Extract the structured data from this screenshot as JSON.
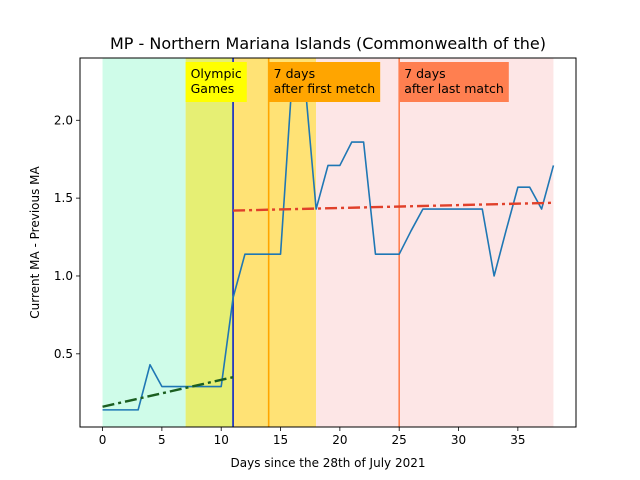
{
  "chart_data": {
    "type": "line",
    "title": "MP - Northern Mariana Islands (Commonwealth of the)",
    "xlabel": "Days since the 28th of July 2021",
    "ylabel": "Current MA - Previous MA",
    "xlim": [
      -1.9,
      39.9
    ],
    "ylim": [
      0.03,
      2.4
    ],
    "xticks": [
      0,
      5,
      10,
      15,
      20,
      25,
      30,
      35
    ],
    "yticks": [
      0.5,
      1.0,
      1.5,
      2.0
    ],
    "xtick_labels": [
      "0",
      "5",
      "10",
      "15",
      "20",
      "25",
      "30",
      "35"
    ],
    "ytick_labels": [
      "0.5",
      "1.0",
      "1.5",
      "2.0"
    ],
    "grid": false,
    "regions": [
      {
        "from": 0,
        "to": 7,
        "color": "#cffce9"
      },
      {
        "from": 7,
        "to": 11,
        "color": "#e6ef74"
      },
      {
        "from": 11,
        "to": 18,
        "color": "#ffe275"
      },
      {
        "from": 18,
        "to": 38,
        "color": "#fde6e6"
      }
    ],
    "vlines": [
      {
        "x": 11,
        "color": "#0b22c9"
      },
      {
        "x": 14,
        "color": "#ffa500"
      },
      {
        "x": 25,
        "color": "#ff7f50"
      }
    ],
    "annotations": [
      {
        "x": 7,
        "lines": [
          "Olympic",
          "Games"
        ],
        "bg": "#ffff00"
      },
      {
        "x": 14,
        "lines": [
          "7 days",
          "after first metch"
        ],
        "bg": "#ffa500"
      },
      {
        "x": 25,
        "lines": [
          "7 days",
          "after last match"
        ],
        "bg": "#ff7f50"
      }
    ],
    "series": [
      {
        "color": "#1f77b4",
        "style": "solid",
        "x": [
          0,
          1,
          2,
          3,
          4,
          5,
          6,
          7,
          8,
          9,
          10,
          11,
          12,
          13,
          14,
          15,
          16,
          17,
          18,
          19,
          20,
          21,
          22,
          23,
          24,
          25,
          26,
          27,
          28,
          29,
          30,
          31,
          32,
          33,
          34,
          35,
          36,
          37,
          38
        ],
        "y": [
          0.14,
          0.14,
          0.14,
          0.14,
          0.43,
          0.29,
          0.29,
          0.29,
          0.29,
          0.29,
          0.29,
          0.86,
          1.14,
          1.14,
          1.14,
          1.14,
          2.29,
          2.29,
          1.43,
          1.71,
          1.71,
          1.86,
          1.86,
          1.14,
          1.14,
          1.14,
          1.29,
          1.43,
          1.43,
          1.43,
          1.43,
          1.43,
          1.43,
          1.0,
          1.29,
          1.57,
          1.57,
          1.43,
          1.71
        ]
      },
      {
        "color": "#1b5e20",
        "style": "dashdot",
        "x": [
          0,
          11
        ],
        "y": [
          0.16,
          0.35
        ]
      },
      {
        "color": "#e0402a",
        "style": "dashdot",
        "x": [
          11,
          38
        ],
        "y": [
          1.42,
          1.47
        ]
      }
    ]
  }
}
